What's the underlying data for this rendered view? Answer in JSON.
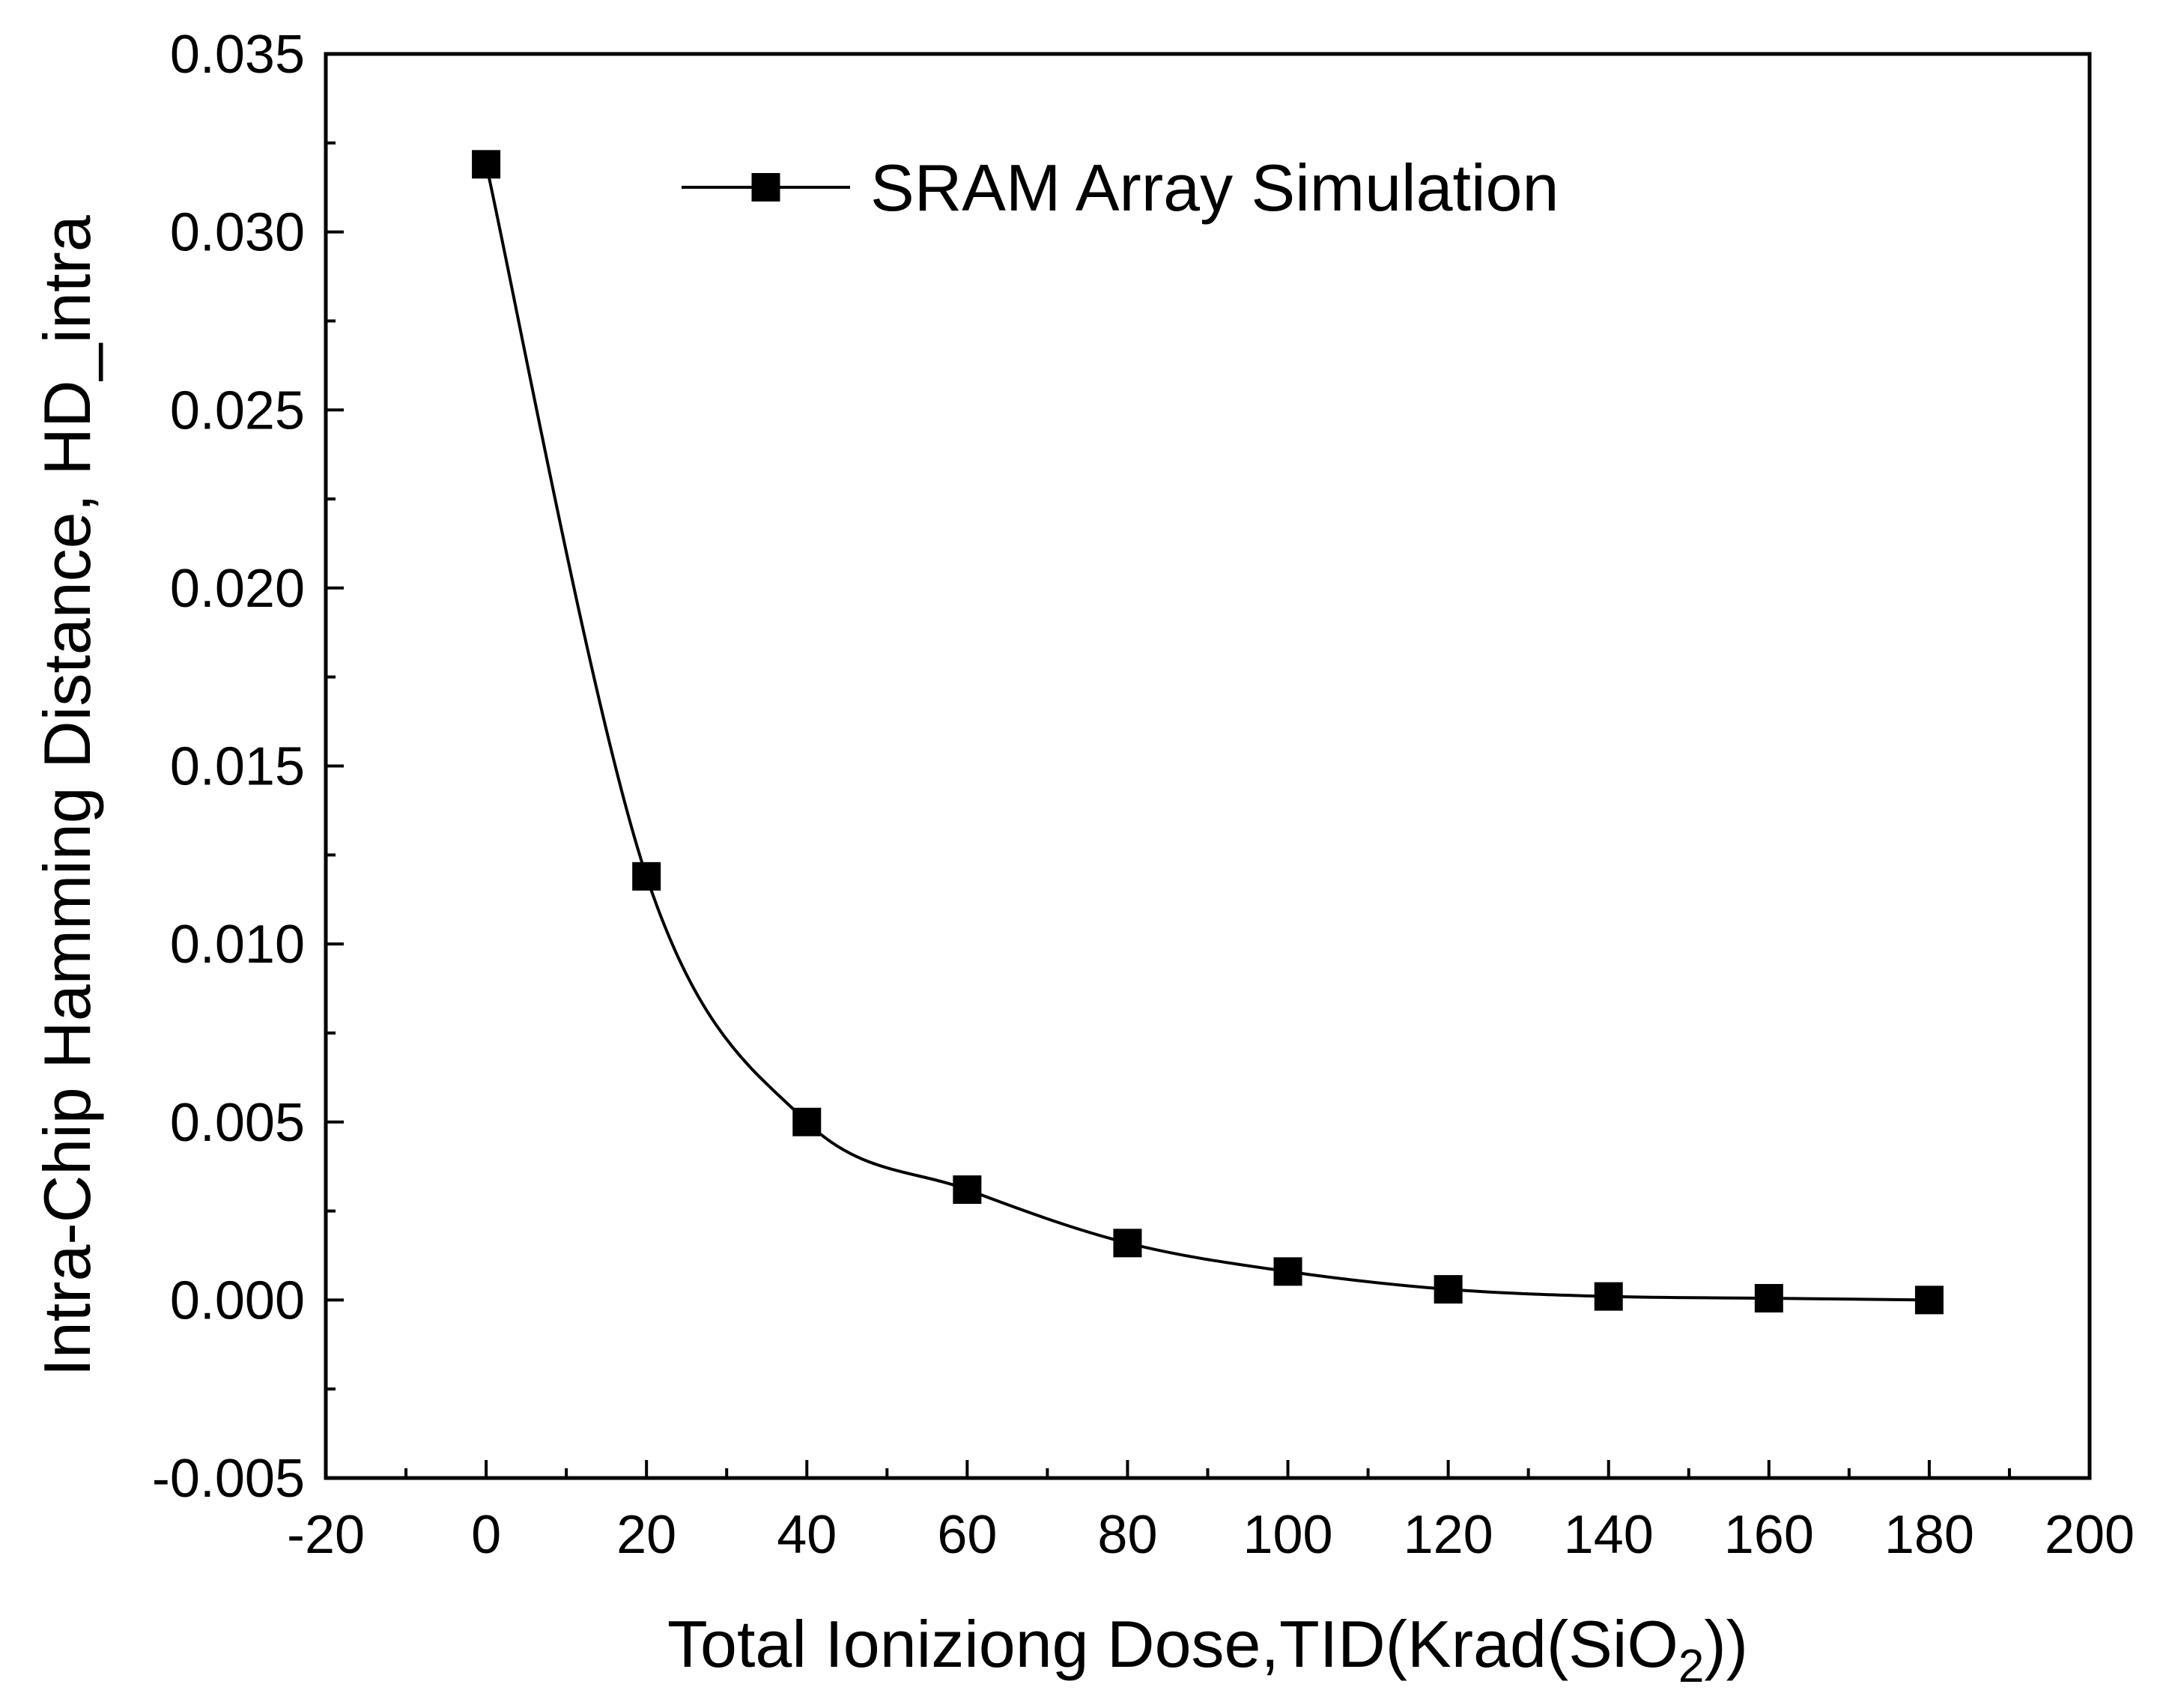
{
  "chart_data": {
    "type": "line",
    "title": "",
    "xlabel": "Total Ioniziong Dose,TID(Krad(SiO",
    "xlabel_subscript": "2",
    "xlabel_suffix": "))",
    "ylabel": "Intra-Chip Hamming Distance, HD_intra",
    "xlim": [
      -20,
      200
    ],
    "ylim": [
      -0.005,
      0.035
    ],
    "x_ticks": [
      -20,
      0,
      20,
      40,
      60,
      80,
      100,
      120,
      140,
      160,
      180,
      200
    ],
    "x_tick_labels": [
      "-20",
      "0",
      "20",
      "40",
      "60",
      "80",
      "100",
      "120",
      "140",
      "160",
      "180",
      "200"
    ],
    "y_ticks": [
      -0.005,
      0.0,
      0.005,
      0.01,
      0.015,
      0.02,
      0.025,
      0.03,
      0.035
    ],
    "y_tick_labels": [
      "-0.005",
      "0.000",
      "0.005",
      "0.010",
      "0.015",
      "0.020",
      "0.025",
      "0.030",
      "0.035"
    ],
    "grid": false,
    "legend_position": "top-center",
    "series": [
      {
        "name": "SRAM Array Simulation",
        "color": "#000000",
        "marker": "square",
        "smooth": true,
        "x": [
          0,
          20,
          40,
          60,
          80,
          100,
          120,
          140,
          160,
          180
        ],
        "values": [
          0.0319,
          0.0119,
          0.005,
          0.0031,
          0.0016,
          0.0008,
          0.0003,
          0.0001,
          5e-05,
          0.0
        ]
      }
    ]
  }
}
